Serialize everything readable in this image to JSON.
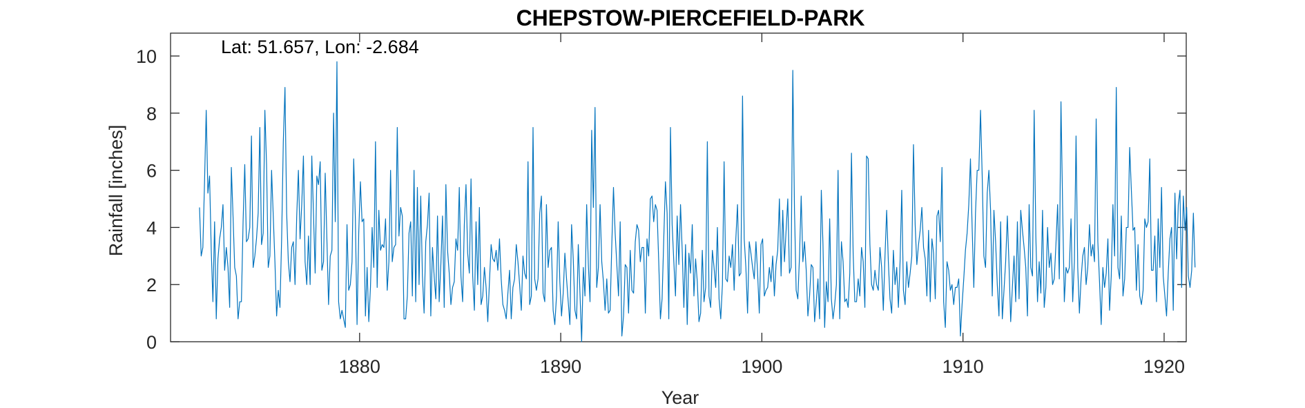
{
  "chart_data": {
    "type": "line",
    "title": "CHEPSTOW-PIERCEFIELD-PARK",
    "annotation": "Lat: 51.657, Lon: -2.684",
    "xlabel": "Year",
    "ylabel": "Rainfall [inches]",
    "xlim": [
      1870.6,
      1921.1
    ],
    "ylim": [
      0,
      10.8
    ],
    "xticks": [
      1880,
      1890,
      1900,
      1910,
      1920
    ],
    "xtick_labels": [
      "1880",
      "1890",
      "1900",
      "1910",
      "1920"
    ],
    "yticks": [
      0,
      2,
      4,
      6,
      8,
      10
    ],
    "ytick_labels": [
      "0",
      "2",
      "4",
      "6",
      "8",
      "10"
    ],
    "grid": false,
    "box": true,
    "series": [
      {
        "color": "#0072BD",
        "x_start": 1872.04,
        "x_step": 0.08333,
        "values": [
          4.7,
          3.0,
          3.3,
          5.6,
          8.1,
          5.2,
          5.8,
          3.2,
          1.4,
          4.2,
          0.8,
          2.9,
          3.6,
          4.0,
          4.8,
          2.5,
          3.3,
          2.6,
          1.2,
          6.1,
          4.4,
          2.6,
          2.3,
          0.8,
          1.4,
          1.4,
          4.2,
          6.2,
          3.5,
          3.6,
          4.0,
          7.2,
          2.6,
          3.0,
          3.6,
          4.5,
          7.5,
          3.4,
          3.8,
          8.1,
          6.2,
          2.6,
          3.0,
          6.0,
          4.4,
          2.8,
          0.9,
          1.8,
          1.2,
          3.6,
          7.0,
          8.9,
          4.5,
          2.8,
          2.1,
          3.3,
          3.5,
          2.0,
          4.4,
          6.0,
          3.6,
          4.8,
          6.5,
          2.8,
          2.0,
          3.7,
          2.0,
          6.5,
          4.5,
          2.4,
          5.8,
          5.5,
          6.3,
          2.5,
          2.8,
          5.9,
          3.6,
          1.3,
          3.0,
          3.2,
          8.0,
          4.2,
          9.8,
          1.4,
          0.8,
          1.1,
          0.8,
          0.5,
          4.1,
          1.8,
          2.0,
          2.8,
          6.4,
          4.3,
          0.6,
          3.8,
          5.6,
          4.2,
          4.3,
          0.9,
          2.6,
          0.7,
          1.9,
          4.0,
          2.6,
          7.0,
          1.9,
          4.6,
          3.2,
          3.4,
          3.3,
          4.3,
          1.8,
          2.8,
          6.0,
          2.8,
          3.3,
          3.4,
          7.5,
          3.7,
          4.7,
          4.4,
          0.8,
          0.8,
          1.6,
          3.8,
          4.2,
          1.6,
          6.0,
          1.4,
          5.4,
          2.0,
          5.1,
          2.3,
          1.0,
          3.5,
          4.1,
          5.2,
          0.9,
          3.3,
          2.3,
          1.5,
          4.4,
          1.4,
          2.7,
          4.4,
          1.2,
          5.5,
          3.2,
          2.4,
          1.3,
          1.9,
          2.1,
          3.6,
          3.2,
          5.4,
          2.3,
          1.4,
          4.1,
          5.5,
          3.1,
          2.4,
          5.7,
          2.3,
          1.1,
          4.2,
          2.0,
          4.7,
          1.3,
          1.6,
          2.6,
          1.9,
          0.7,
          2.1,
          3.4,
          2.9,
          2.8,
          3.2,
          2.5,
          3.6,
          2.2,
          1.3,
          1.1,
          0.8,
          1.7,
          2.5,
          0.8,
          1.9,
          2.2,
          3.4,
          2.8,
          2.0,
          1.1,
          3.0,
          2.4,
          2.2,
          6.3,
          1.3,
          1.6,
          7.5,
          2.2,
          1.8,
          2.2,
          4.5,
          5.1,
          1.7,
          1.4,
          4.8,
          2.6,
          3.2,
          3.3,
          1.1,
          0.6,
          1.6,
          4.2,
          2.1,
          0.9,
          1.7,
          3.1,
          2.2,
          1.4,
          0.6,
          4.1,
          2.9,
          1.1,
          0.8,
          3.4,
          1.7,
          0.0,
          2.6,
          1.6,
          4.8,
          2.7,
          1.4,
          7.4,
          4.7,
          8.2,
          1.9,
          2.6,
          4.8,
          2.8,
          2.1,
          1.1,
          2.2,
          1.0,
          1.1,
          3.4,
          5.4,
          3.8,
          2.7,
          1.6,
          4.2,
          0.2,
          0.9,
          2.7,
          2.6,
          1.0,
          3.2,
          1.8,
          1.7,
          3.5,
          4.1,
          3.9,
          2.8,
          3.3,
          3.3,
          1.0,
          3.6,
          3.0,
          5.0,
          5.1,
          4.2,
          4.8,
          4.6,
          2.8,
          0.8,
          1.5,
          3.6,
          5.6,
          4.5,
          0.8,
          7.5,
          4.1,
          2.8,
          1.6,
          4.4,
          2.7,
          4.8,
          3.2,
          1.2,
          3.4,
          0.6,
          3.1,
          2.4,
          4.1,
          1.6,
          2.9,
          2.1,
          0.7,
          1.0,
          3.2,
          1.4,
          1.9,
          7.0,
          1.6,
          1.2,
          3.2,
          2.6,
          1.9,
          4.0,
          1.5,
          0.8,
          2.0,
          6.3,
          2.2,
          2.1,
          3.0,
          2.6,
          3.4,
          1.8,
          3.6,
          4.8,
          2.3,
          2.4,
          8.6,
          3.6,
          2.6,
          1.0,
          3.5,
          3.1,
          2.6,
          2.2,
          3.5,
          2.4,
          1.0,
          3.4,
          3.6,
          1.6,
          1.8,
          1.9,
          2.6,
          2.1,
          3.0,
          1.6,
          2.7,
          3.2,
          5.0,
          2.3,
          4.6,
          2.8,
          3.9,
          5.0,
          2.4,
          2.6,
          9.5,
          4.6,
          1.8,
          1.5,
          3.0,
          5.1,
          2.8,
          3.5,
          2.5,
          0.9,
          1.6,
          2.7,
          2.6,
          0.7,
          1.4,
          2.2,
          0.8,
          5.3,
          3.4,
          0.5,
          2.1,
          1.4,
          4.3,
          1.5,
          0.8,
          1.3,
          2.0,
          6.0,
          0.8,
          3.5,
          2.8,
          1.4,
          1.5,
          1.2,
          2.4,
          6.6,
          3.1,
          1.4,
          1.4,
          2.2,
          1.6,
          3.3,
          2.8,
          1.2,
          6.5,
          6.4,
          3.4,
          2.0,
          1.8,
          2.5,
          2.0,
          1.8,
          3.3,
          2.6,
          1.1,
          3.0,
          4.6,
          2.8,
          1.5,
          1.0,
          3.2,
          2.0,
          2.6,
          1.2,
          2.8,
          5.3,
          1.8,
          1.3,
          2.8,
          1.9,
          2.4,
          3.0,
          6.9,
          4.1,
          2.7,
          3.4,
          3.9,
          4.7,
          3.3,
          2.9,
          1.6,
          3.9,
          1.4,
          3.6,
          3.1,
          1.5,
          4.4,
          4.6,
          3.5,
          6.1,
          1.4,
          0.5,
          2.8,
          2.5,
          1.8,
          2.0,
          1.3,
          1.9,
          1.9,
          2.2,
          0.2,
          1.3,
          2.2,
          3.2,
          3.8,
          4.8,
          6.4,
          4.0,
          1.9,
          4.5,
          6.0,
          6.0,
          8.1,
          5.8,
          3.0,
          2.6,
          5.2,
          6.0,
          4.6,
          1.6,
          4.6,
          3.5,
          2.0,
          0.9,
          4.2,
          0.8,
          1.8,
          2.8,
          4.4,
          2.7,
          0.7,
          1.9,
          3.0,
          1.4,
          4.2,
          1.5,
          4.6,
          3.9,
          3.3,
          2.6,
          0.9,
          4.8,
          2.6,
          2.3,
          8.1,
          3.7,
          1.4,
          2.8,
          1.7,
          4.6,
          1.2,
          1.9,
          4.0,
          2.6,
          3.1,
          2.0,
          2.2,
          3.4,
          4.8,
          2.2,
          8.4,
          4.7,
          1.4,
          2.6,
          2.4,
          2.6,
          4.3,
          1.4,
          2.8,
          7.2,
          2.6,
          1.0,
          2.2,
          3.0,
          3.3,
          2.0,
          2.6,
          4.1,
          3.0,
          3.4,
          2.8,
          7.8,
          3.5,
          2.1,
          0.6,
          2.6,
          1.9,
          2.4,
          3.6,
          1.1,
          2.3,
          4.8,
          3.0,
          8.9,
          2.6,
          2.2,
          4.4,
          1.6,
          2.2,
          4.0,
          4.0,
          6.8,
          5.3,
          3.9,
          4.0,
          1.8,
          3.4,
          1.6,
          1.3,
          1.8,
          4.3,
          4.0,
          4.2,
          6.4,
          2.5,
          2.5,
          3.7,
          1.4,
          4.3,
          2.6,
          5.4,
          2.3,
          1.6,
          0.9,
          2.4,
          3.6,
          4.0,
          1.1,
          5.2,
          2.9,
          4.8,
          5.3,
          1.9,
          5.1,
          3.9,
          4.7,
          2.3,
          1.9,
          2.5,
          4.5,
          2.6
        ]
      }
    ]
  }
}
